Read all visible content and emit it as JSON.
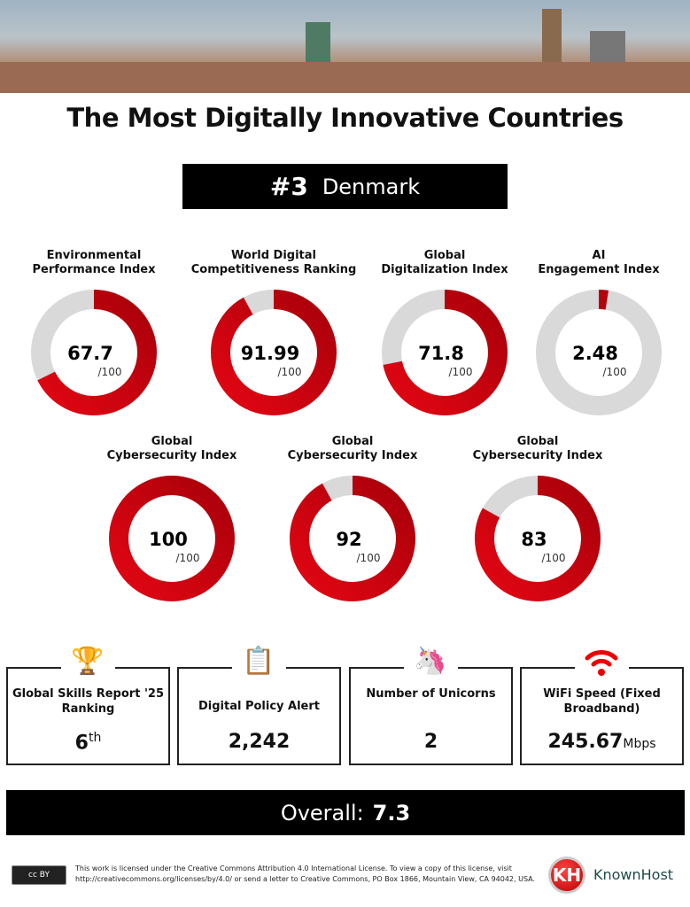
{
  "title": "The Most Digitally Innovative Countries",
  "rank": {
    "number": "#3",
    "country": "Denmark"
  },
  "chart_data": [
    {
      "type": "pie",
      "label": "Environmental Performance Index",
      "value": 67.7,
      "value_text": "67.7",
      "max_text": "/100",
      "max": 100
    },
    {
      "type": "pie",
      "label": "World Digital Competitiveness Ranking",
      "value": 91.99,
      "value_text": "91.99",
      "max_text": "/100",
      "max": 100
    },
    {
      "type": "pie",
      "label": "Global Digitalization Index",
      "value": 71.8,
      "value_text": "71.8",
      "max_text": "/100",
      "max": 100
    },
    {
      "type": "pie",
      "label": "AI Engagement Index",
      "value": 2.48,
      "value_text": "2.48",
      "max_text": "/100",
      "max": 100
    },
    {
      "type": "pie",
      "label": "Global Cybersecurity Index",
      "value": 100,
      "value_text": "100",
      "max_text": "/100",
      "max": 100
    },
    {
      "type": "pie",
      "label": "Global Cybersecurity Index",
      "value": 92,
      "value_text": "92",
      "max_text": "/100",
      "max": 100
    },
    {
      "type": "pie",
      "label": "Global Cybersecurity Index",
      "value": 83,
      "value_text": "83",
      "max_text": "/100",
      "max": 100
    }
  ],
  "colors": {
    "fill": "#e30613",
    "fill_dark": "#a8000a",
    "track": "#d9d9d9"
  },
  "labels": [
    [
      "Environmental",
      "Performance Index"
    ],
    [
      "World Digital",
      "Competitiveness Ranking"
    ],
    [
      "Global",
      "Digitalization Index"
    ],
    [
      "AI",
      "Engagement Index"
    ],
    [
      "Global",
      "Cybersecurity Index"
    ],
    [
      "Global",
      "Cybersecurity Index"
    ],
    [
      "Global",
      "Cybersecurity Index"
    ]
  ],
  "cards": [
    {
      "icon": "trophy-icon",
      "title": "Global Skills Report '25 Ranking",
      "value": "6",
      "suffix": "th"
    },
    {
      "icon": "policy-clipboard-icon",
      "title": "Digital Policy Alert",
      "value": "2,242",
      "suffix": ""
    },
    {
      "icon": "unicorn-icon",
      "title": "Number of Unicorns",
      "value": "2",
      "suffix": ""
    },
    {
      "icon": "wifi-icon",
      "title": "WiFi Speed (Fixed Broadband)",
      "value": "245.67",
      "suffix": "Mbps"
    }
  ],
  "overall": {
    "label": "Overall:",
    "value": "7.3"
  },
  "footer": {
    "cc_badge": "cc BY",
    "license": "This work is licensed under the Creative Commons Attribution 4.0 International License. To view a copy of this license, visit http://creativecommons.org/licenses/by/4.0/ or send a letter to Creative Commons, PO Box 1866, Mountain View, CA 94042, USA.",
    "brand": "KnownHost",
    "brand_logo": "KH"
  }
}
